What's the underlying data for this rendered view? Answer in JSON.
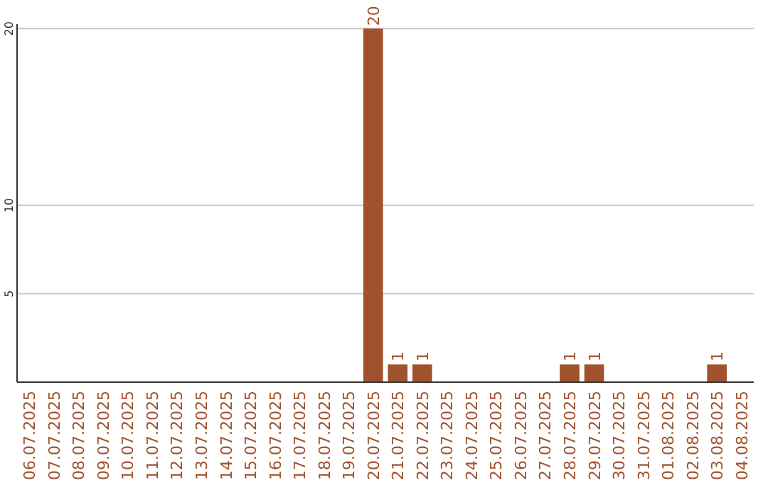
{
  "chart_data": {
    "type": "bar",
    "categories": [
      "06.07.2025",
      "07.07.2025",
      "08.07.2025",
      "09.07.2025",
      "10.07.2025",
      "11.07.2025",
      "12.07.2025",
      "13.07.2025",
      "14.07.2025",
      "15.07.2025",
      "16.07.2025",
      "17.07.2025",
      "18.07.2025",
      "19.07.2025",
      "20.07.2025",
      "21.07.2025",
      "22.07.2025",
      "23.07.2025",
      "24.07.2025",
      "25.07.2025",
      "26.07.2025",
      "27.07.2025",
      "28.07.2025",
      "29.07.2025",
      "30.07.2025",
      "31.07.2025",
      "01.08.2025",
      "02.08.2025",
      "03.08.2025",
      "04.08.2025"
    ],
    "values": [
      0,
      0,
      0,
      0,
      0,
      0,
      0,
      0,
      0,
      0,
      0,
      0,
      0,
      0,
      20,
      1,
      1,
      0,
      0,
      0,
      0,
      0,
      1,
      1,
      0,
      0,
      0,
      0,
      1,
      0
    ],
    "value_labels": [
      null,
      null,
      null,
      null,
      null,
      null,
      null,
      null,
      null,
      null,
      null,
      null,
      null,
      null,
      "20",
      "1",
      "1",
      null,
      null,
      null,
      null,
      null,
      "1",
      "1",
      null,
      null,
      null,
      null,
      "1",
      null
    ],
    "color": "#a0522d",
    "ylim": [
      0,
      20.25
    ],
    "yticks": [
      5,
      10,
      20
    ],
    "grid": "y"
  }
}
